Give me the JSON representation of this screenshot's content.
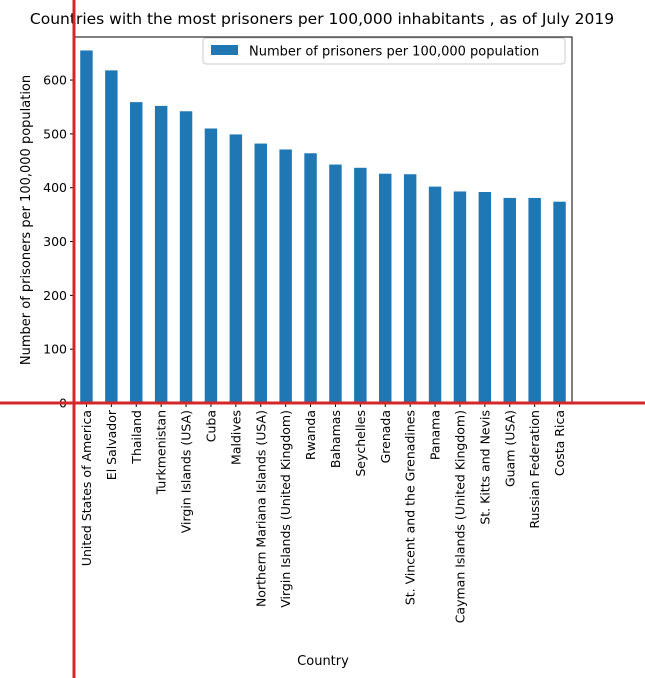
{
  "chart_data": {
    "type": "bar",
    "title": "Countries with the most prisoners per 100,000 inhabitants , as of July 2019",
    "xlabel": "Country",
    "ylabel": "Number of prisoners per 100,000 population",
    "ylim": [
      0,
      680
    ],
    "yticks": [
      0,
      100,
      200,
      300,
      400,
      500,
      600
    ],
    "grid": false,
    "legend_position": "top-right",
    "series": [
      {
        "name": "Number of prisoners per 100,000 population",
        "color": "#1f77b4",
        "values": [
          655,
          618,
          559,
          552,
          542,
          510,
          499,
          482,
          471,
          464,
          443,
          437,
          426,
          425,
          402,
          393,
          392,
          381,
          381,
          374
        ]
      }
    ],
    "categories": [
      "United States of America",
      "El Salvador",
      "Thailand",
      "Turkmenistan",
      "Virgin Islands (USA)",
      "Cuba",
      "Maldives",
      "Northern Mariana Islands (USA)",
      "Virgin Islands (United Kingdom)",
      "Rwanda",
      "Bahamas",
      "Seychelles",
      "Grenada",
      "St. Vincent and the Grenadines",
      "Panama",
      "Cayman Islands (United Kingdom)",
      "St. Kitts and Nevis",
      "Guam (USA)",
      "Russian Federation",
      "Costa Rica"
    ]
  },
  "overlay": {
    "line_color": "#d62728"
  }
}
